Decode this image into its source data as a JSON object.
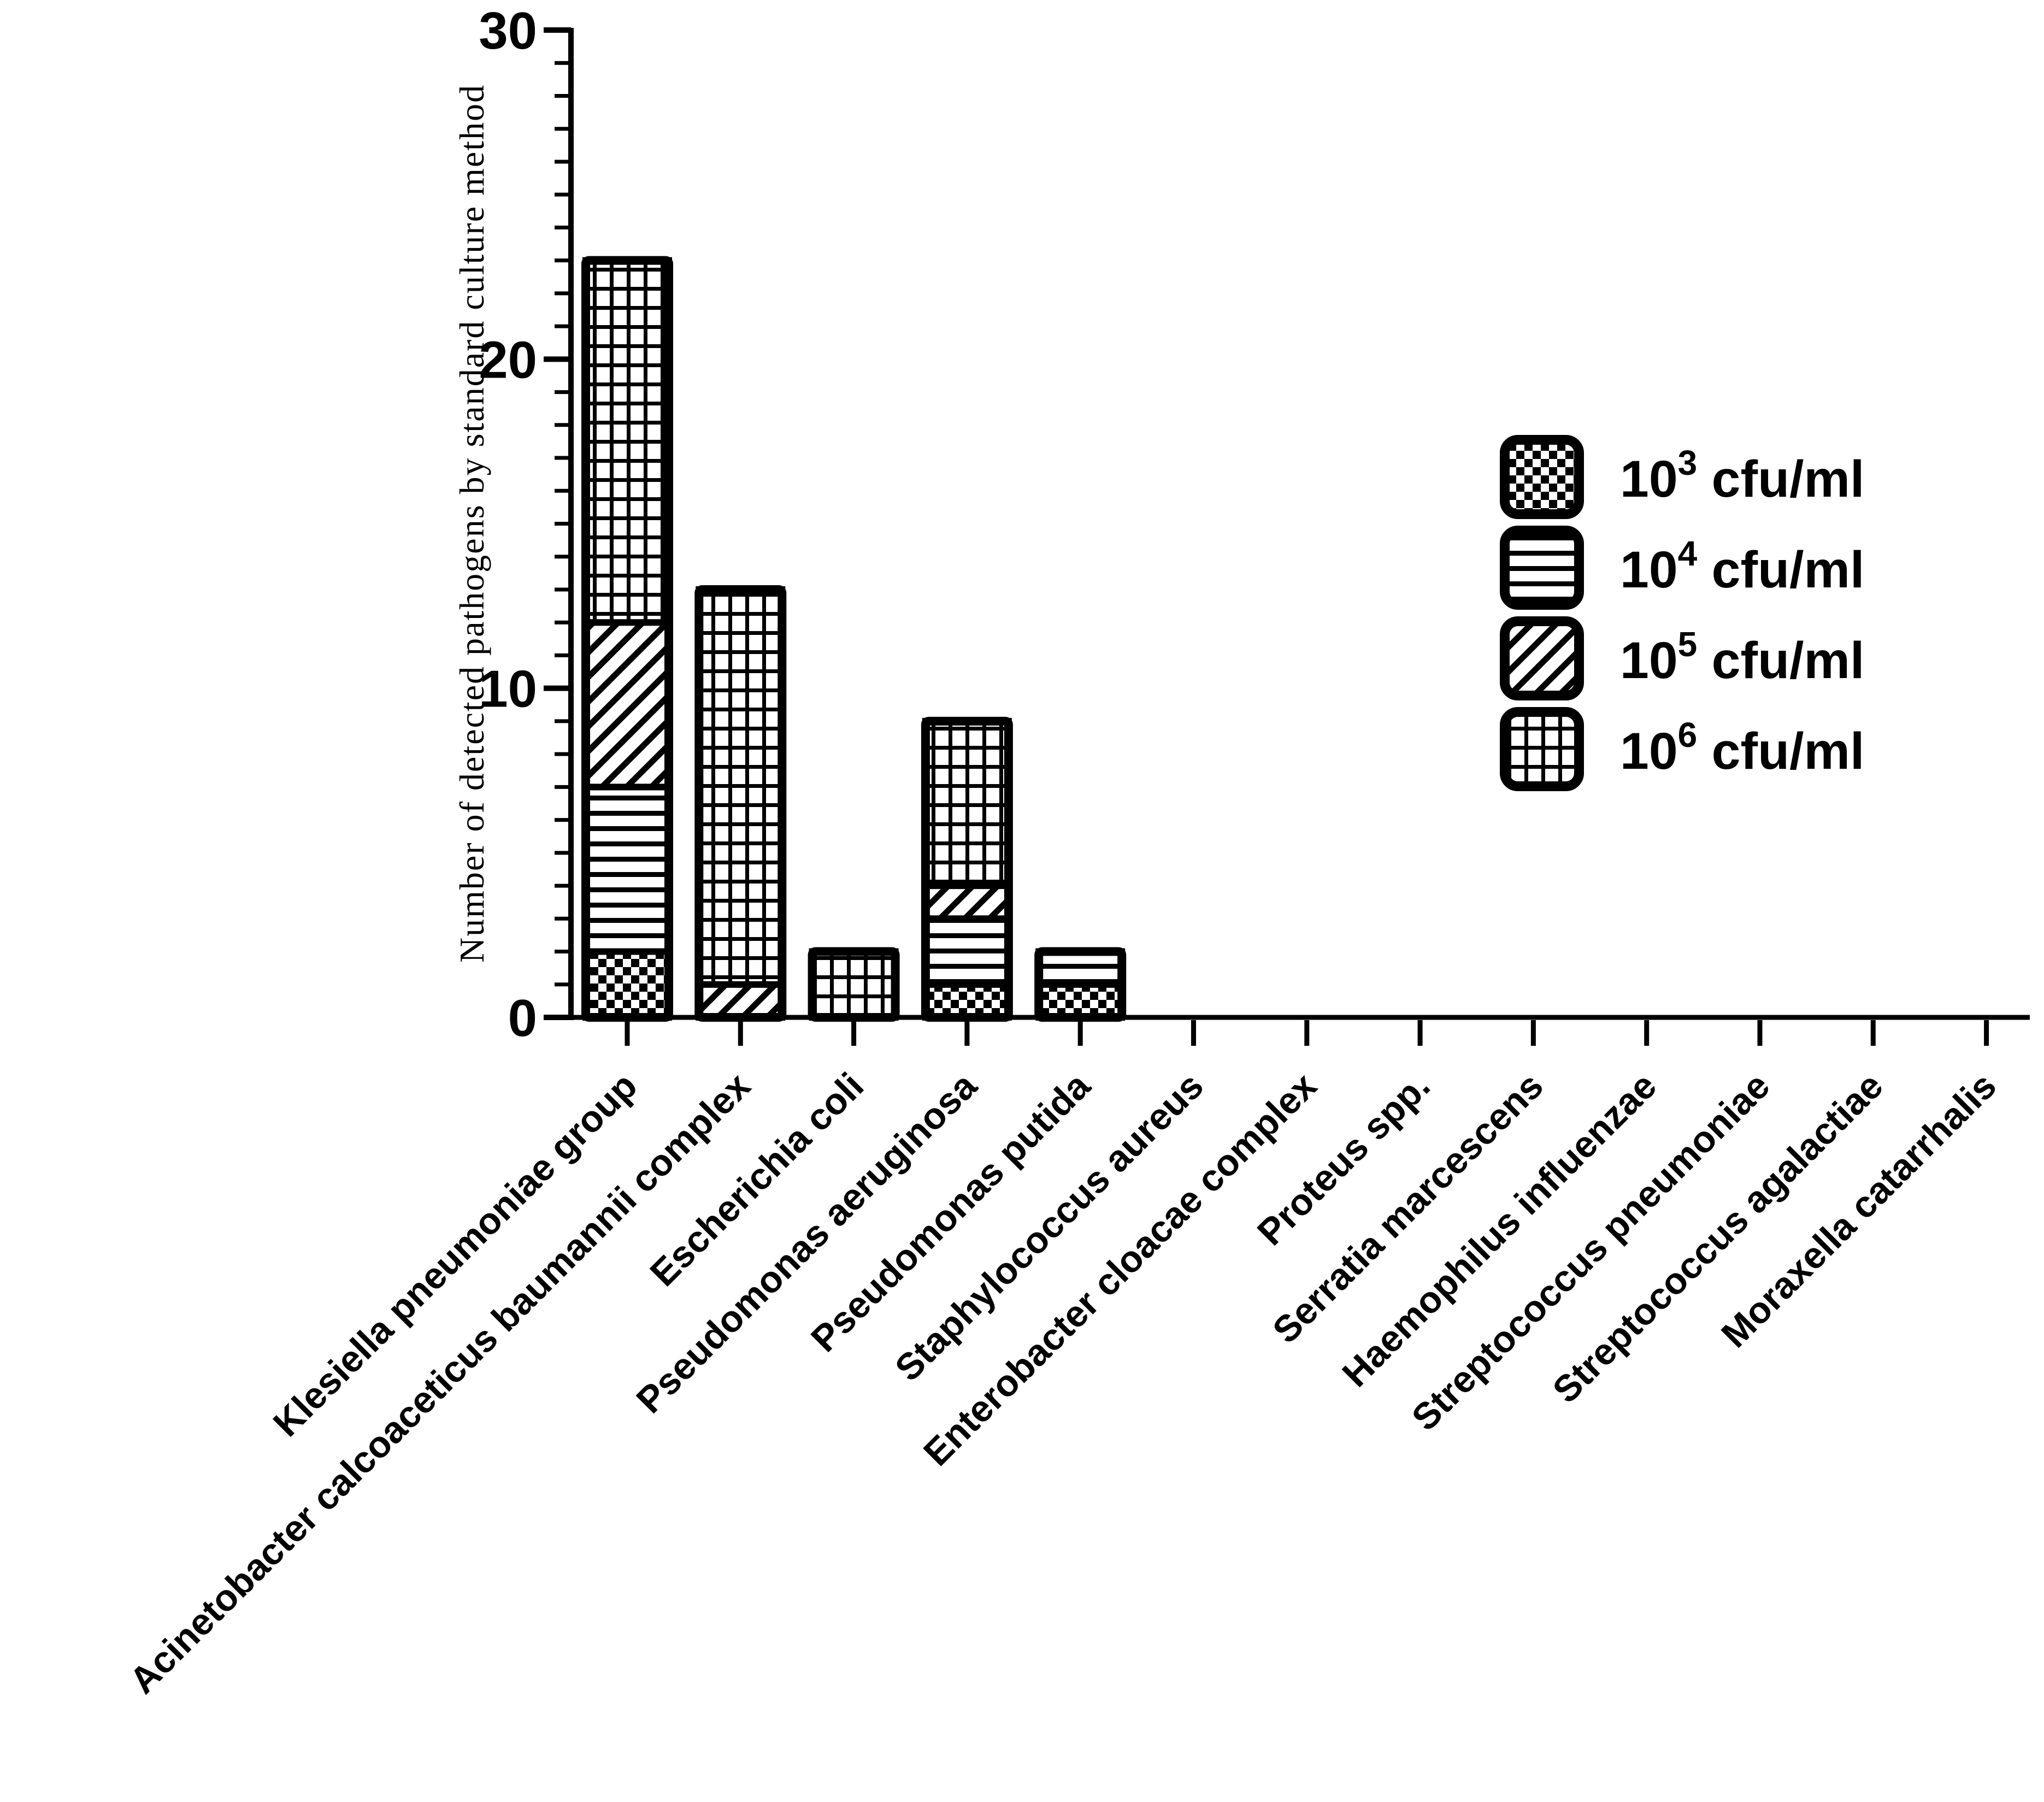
{
  "figure": {
    "background": "#ffffff",
    "ink": "#000000"
  },
  "chart_data": {
    "type": "bar",
    "subtype": "stacked-vertical",
    "title": "",
    "xlabel": "",
    "ylabel": "Number of detected pathogens by standard culture method",
    "ylim": [
      0,
      30
    ],
    "yticks_major": [
      0,
      10,
      20,
      30
    ],
    "ytick_minor_step": 1,
    "grid": false,
    "legend_position": "right-upper-middle",
    "categories": [
      "Klesiella pneumoniae group",
      "Acinetobacter calcoaceticus baumannii complex",
      "Escherichia coli",
      "Pseudomonas aeruginosa",
      "Pseudomonas putida",
      "Staphylococcus aureus",
      "Enterobacter cloacae complex",
      "Proteus spp.",
      "Serratia marcescens",
      "Haemophilus influenzae",
      "Streptococcus pneumoniae",
      "Streptococcus agalactiae",
      "Moraxella catarrhalis"
    ],
    "series": [
      {
        "name": "10^3 cfu/ml",
        "pattern": "checker",
        "values": [
          2,
          0,
          0,
          1,
          1,
          0,
          0,
          0,
          0,
          0,
          0,
          0,
          0
        ]
      },
      {
        "name": "10^4 cfu/ml",
        "pattern": "hlines",
        "values": [
          5,
          0,
          0,
          2,
          1,
          0,
          0,
          0,
          0,
          0,
          0,
          0,
          0
        ]
      },
      {
        "name": "10^5 cfu/ml",
        "pattern": "diag",
        "values": [
          5,
          1,
          0,
          1,
          0,
          0,
          0,
          0,
          0,
          0,
          0,
          0,
          0
        ]
      },
      {
        "name": "10^6 cfu/ml",
        "pattern": "grid",
        "values": [
          11,
          12,
          2,
          5,
          0,
          0,
          0,
          0,
          0,
          0,
          0,
          0,
          0
        ]
      }
    ],
    "stack_totals": [
      23,
      13,
      2,
      9,
      2,
      0,
      0,
      0,
      0,
      0,
      0,
      0,
      0
    ],
    "legend": [
      {
        "base": "10",
        "exp": "3",
        "unit": "cfu/ml",
        "pattern": "checker"
      },
      {
        "base": "10",
        "exp": "4",
        "unit": "cfu/ml",
        "pattern": "hlines"
      },
      {
        "base": "10",
        "exp": "5",
        "unit": "cfu/ml",
        "pattern": "diag"
      },
      {
        "base": "10",
        "exp": "6",
        "unit": "cfu/ml",
        "pattern": "grid"
      }
    ],
    "colors": {
      "ink": "#000000",
      "background": "#ffffff"
    }
  }
}
